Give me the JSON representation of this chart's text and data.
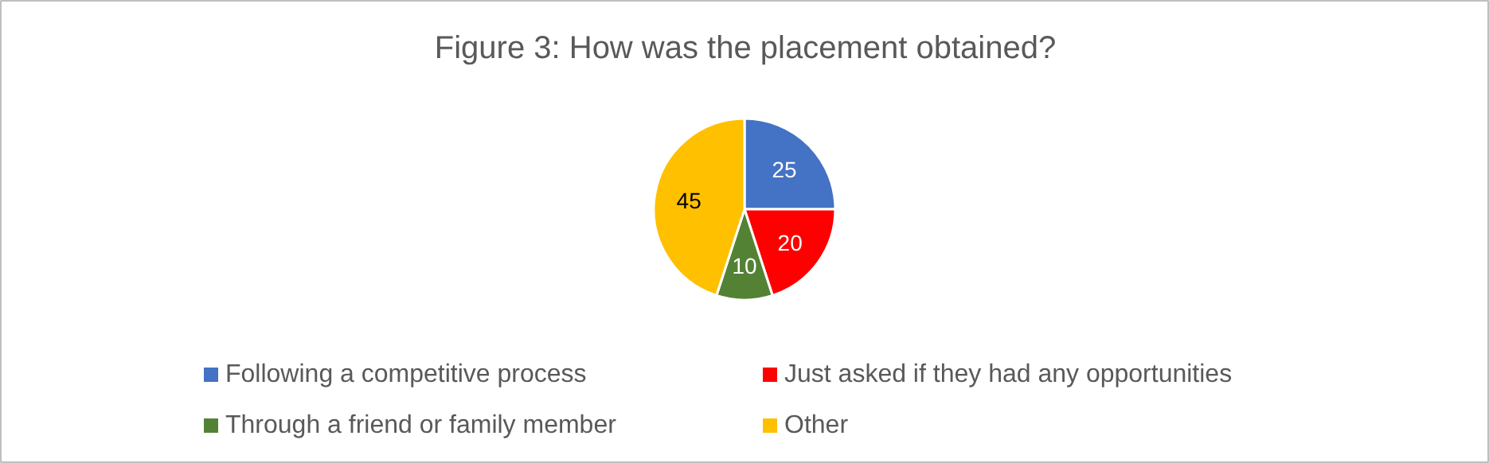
{
  "chart_data": {
    "type": "pie",
    "title": "Figure 3: How was the placement obtained?",
    "categories": [
      "Following a competitive process",
      "Just asked if they had any opportunities",
      "Through a friend or family member",
      "Other"
    ],
    "values": [
      25,
      20,
      10,
      45
    ],
    "colors": [
      "#4472c4",
      "#ff0000",
      "#548235",
      "#ffc000"
    ],
    "data_labels": true,
    "legend": "bottom"
  }
}
